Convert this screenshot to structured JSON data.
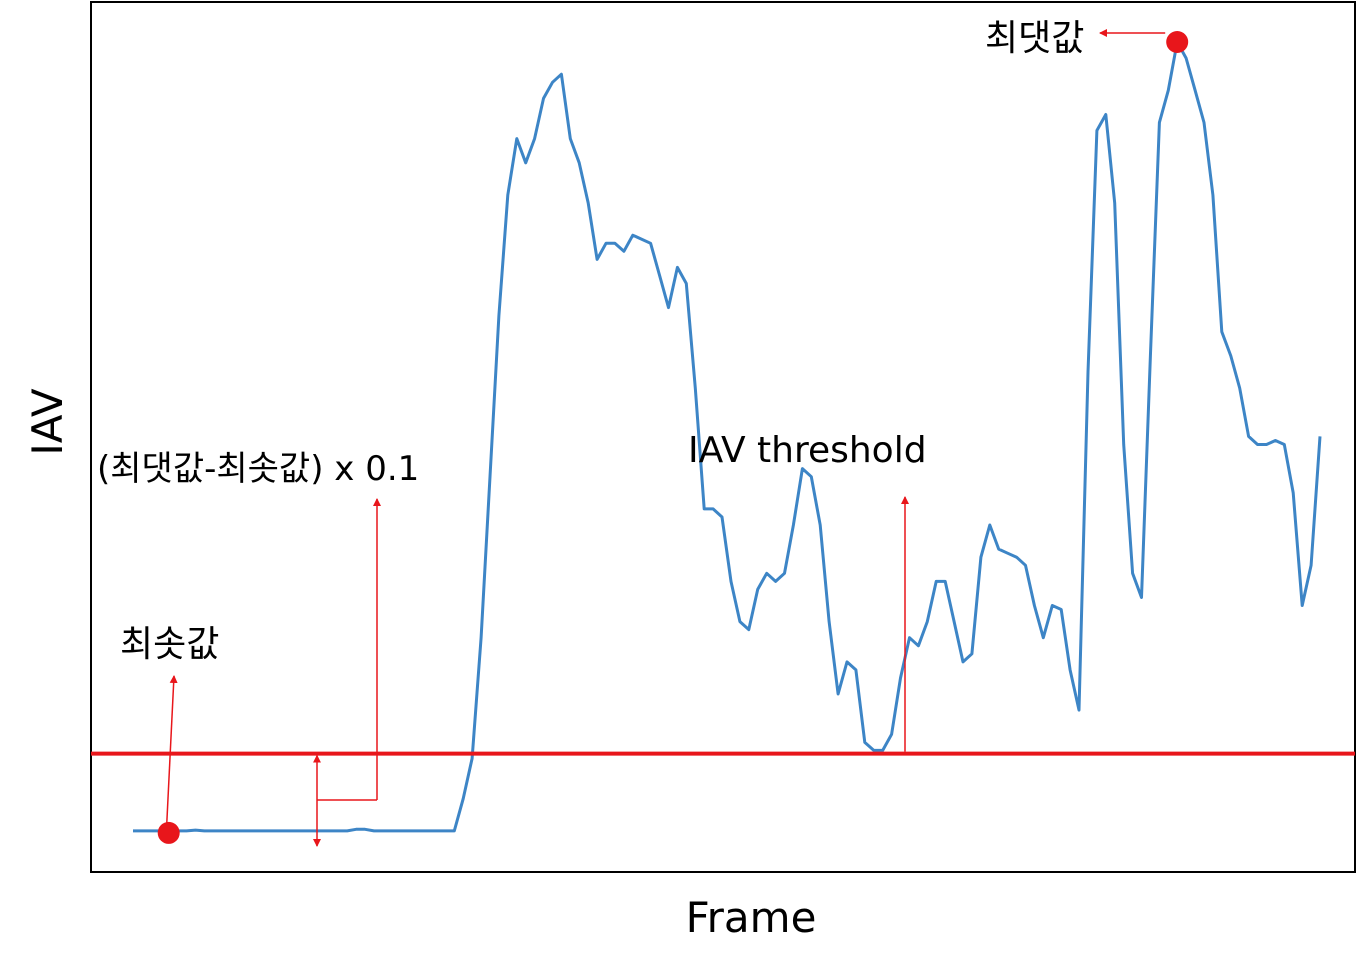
{
  "chart_data": {
    "type": "line",
    "xlabel": "Frame",
    "ylabel": "IAV",
    "title": "",
    "grid": false,
    "legend": "none",
    "colors": {
      "signal": "#3d85c6",
      "threshold": "#e8161b",
      "annotation": "#e8161b"
    },
    "series": [
      {
        "values": [
          2,
          2,
          2,
          2,
          2,
          2,
          2,
          2.1,
          2,
          2,
          2,
          2,
          2,
          2,
          2,
          2,
          2,
          2,
          2,
          2,
          2,
          2,
          2,
          2,
          2,
          2.2,
          2.2,
          2,
          2,
          2,
          2,
          2,
          2,
          2,
          2,
          2,
          2,
          6,
          11,
          26,
          46,
          66,
          81,
          88,
          85,
          88,
          93,
          95,
          96,
          88,
          85,
          80,
          73,
          75,
          75,
          74,
          76,
          75.5,
          75,
          71,
          67,
          72,
          70,
          57,
          42,
          42,
          41,
          33,
          28,
          27,
          32,
          34,
          33,
          34,
          40,
          47,
          46,
          40,
          28,
          19,
          23,
          22,
          13,
          12,
          12,
          14,
          21,
          26,
          25,
          28,
          33,
          33,
          28,
          23,
          24,
          36,
          40,
          37,
          36.5,
          36,
          35,
          30,
          26,
          30,
          29.5,
          22,
          17,
          59,
          89,
          91,
          80,
          50,
          34,
          31,
          61,
          90,
          94,
          100,
          98,
          94,
          90,
          81,
          64,
          61,
          57,
          51,
          50,
          50,
          50.5,
          50,
          44,
          30,
          35,
          51
        ]
      }
    ],
    "ylim": [
      0,
      100
    ],
    "threshold": {
      "label": "IAV threshold",
      "value": 11.6
    },
    "annotations": {
      "max_label": "최댓값",
      "min_label": "최솟값",
      "formula_label": "(최댓값-최솟값) x 0.1"
    }
  }
}
